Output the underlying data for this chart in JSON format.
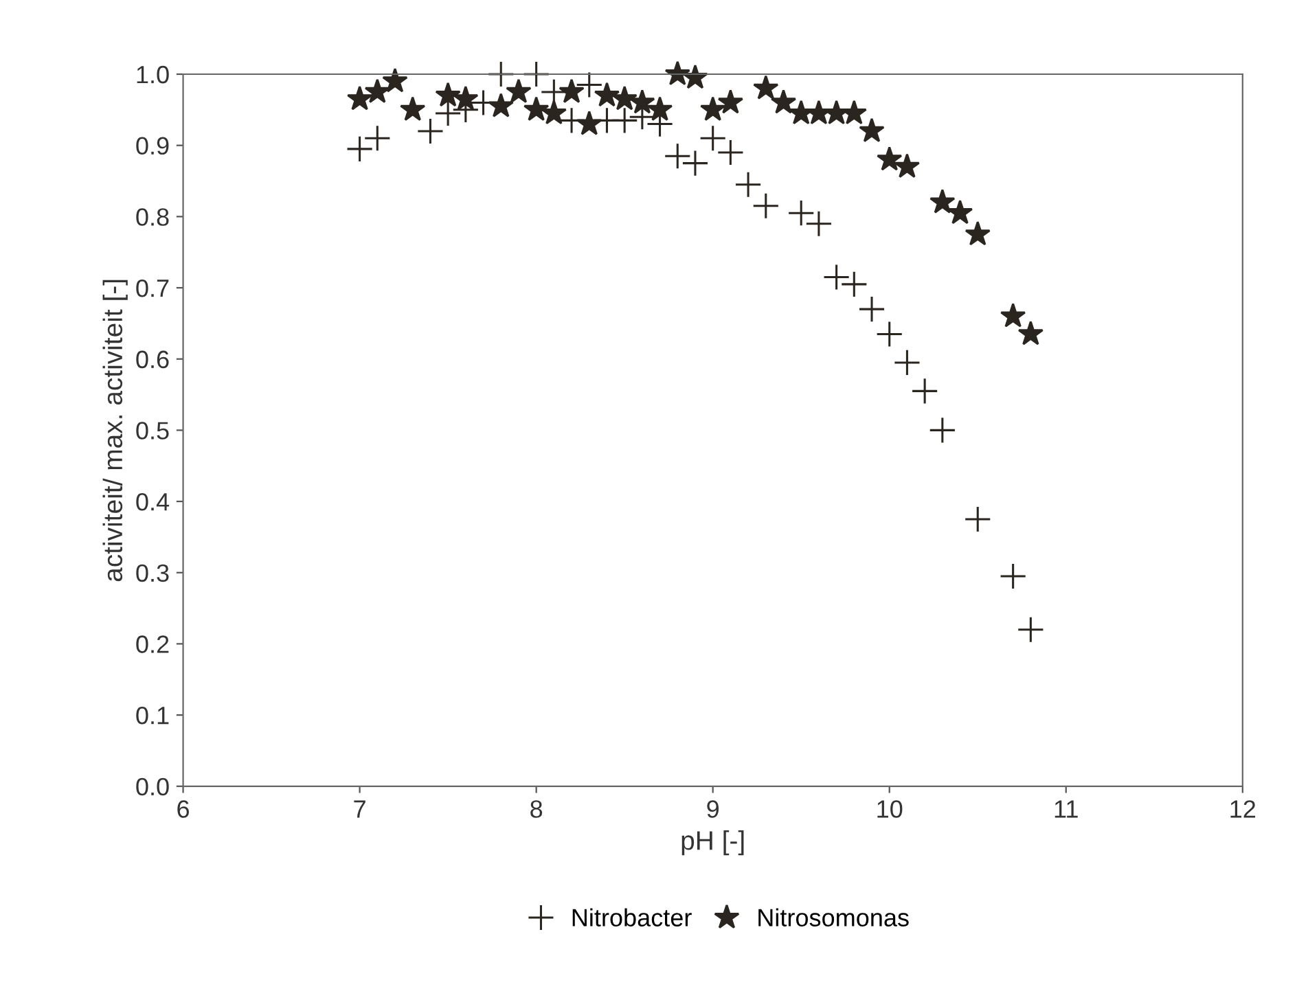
{
  "chart_data": {
    "type": "scatter",
    "xlabel": "pH [-]",
    "ylabel": "activiteit/ max. activiteit [-]",
    "xlim": [
      6,
      12
    ],
    "xticks": [
      6,
      7,
      8,
      9,
      10,
      11,
      12
    ],
    "ylim": [
      0.0,
      1.0
    ],
    "yticks": [
      {
        "value": 0,
        "label": "0.0"
      },
      0.1,
      0.2,
      0.3,
      0.4,
      0.5,
      0.6,
      0.7,
      0.8,
      0.9,
      {
        "value": 1,
        "label": "1.0"
      }
    ],
    "grid": false,
    "legend": "bottom",
    "series": [
      {
        "name": "Nitrobacter",
        "color": "#2b2520",
        "marker": "cross",
        "x": [
          7.0,
          7.1,
          7.4,
          7.5,
          7.6,
          7.7,
          7.8,
          8.0,
          8.1,
          8.2,
          8.3,
          8.4,
          8.5,
          8.6,
          8.7,
          8.8,
          8.9,
          9.0,
          9.1,
          9.2,
          9.3,
          9.5,
          9.6,
          9.7,
          9.8,
          9.9,
          10.0,
          10.1,
          10.2,
          10.3,
          10.5,
          10.7,
          10.8
        ],
        "values": [
          0.895,
          0.91,
          0.92,
          0.945,
          0.95,
          0.96,
          1.0,
          1.0,
          0.975,
          0.935,
          0.985,
          0.935,
          0.935,
          0.94,
          0.93,
          0.885,
          0.875,
          0.91,
          0.89,
          0.845,
          0.815,
          0.805,
          0.79,
          0.715,
          0.705,
          0.67,
          0.635,
          0.595,
          0.555,
          0.5,
          0.375,
          0.295,
          0.22
        ]
      },
      {
        "name": "Nitrosomonas",
        "color": "#2b2520",
        "marker": "star",
        "x": [
          7.0,
          7.1,
          7.2,
          7.3,
          7.5,
          7.6,
          7.8,
          7.9,
          8.0,
          8.1,
          8.2,
          8.3,
          8.4,
          8.5,
          8.6,
          8.7,
          8.8,
          8.9,
          9.0,
          9.1,
          9.3,
          9.4,
          9.5,
          9.6,
          9.7,
          9.8,
          9.9,
          10.0,
          10.1,
          10.3,
          10.4,
          10.5,
          10.7,
          10.8
        ],
        "values": [
          0.965,
          0.975,
          0.99,
          0.95,
          0.97,
          0.965,
          0.955,
          0.975,
          0.95,
          0.945,
          0.975,
          0.93,
          0.97,
          0.965,
          0.96,
          0.95,
          1.0,
          0.995,
          0.95,
          0.96,
          0.98,
          0.96,
          0.945,
          0.945,
          0.945,
          0.945,
          0.92,
          0.88,
          0.87,
          0.82,
          0.805,
          0.775,
          0.66,
          0.635
        ]
      }
    ]
  }
}
